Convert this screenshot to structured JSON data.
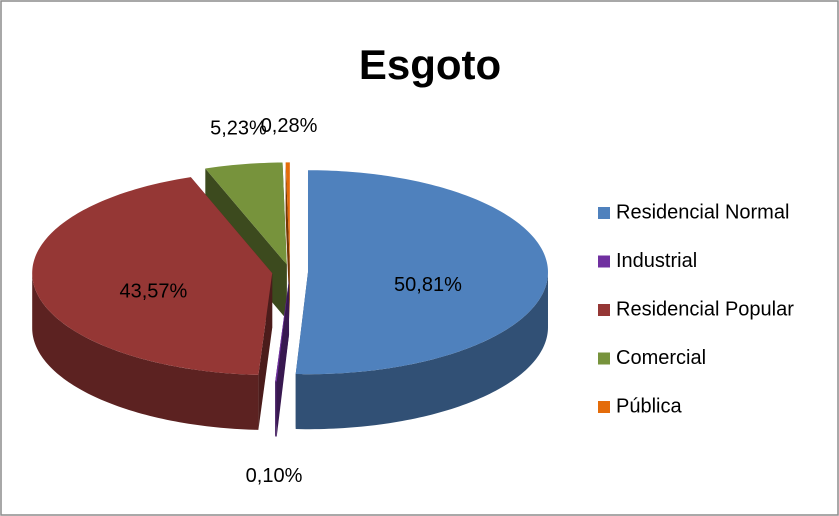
{
  "chart_data": {
    "type": "pie",
    "title": "Esgoto",
    "categories": [
      "Residencial Normal",
      "Industrial",
      "Residencial Popular",
      "Comercial",
      "Pública"
    ],
    "values": [
      50.81,
      0.1,
      43.57,
      5.23,
      0.28
    ],
    "value_labels": [
      "50,81%",
      "0,10%",
      "43,57%",
      "5,23%",
      "0,28%"
    ],
    "colors": [
      "#4f81bd",
      "#7030a0",
      "#953735",
      "#77933c",
      "#e46c0a"
    ],
    "legend": "right"
  }
}
